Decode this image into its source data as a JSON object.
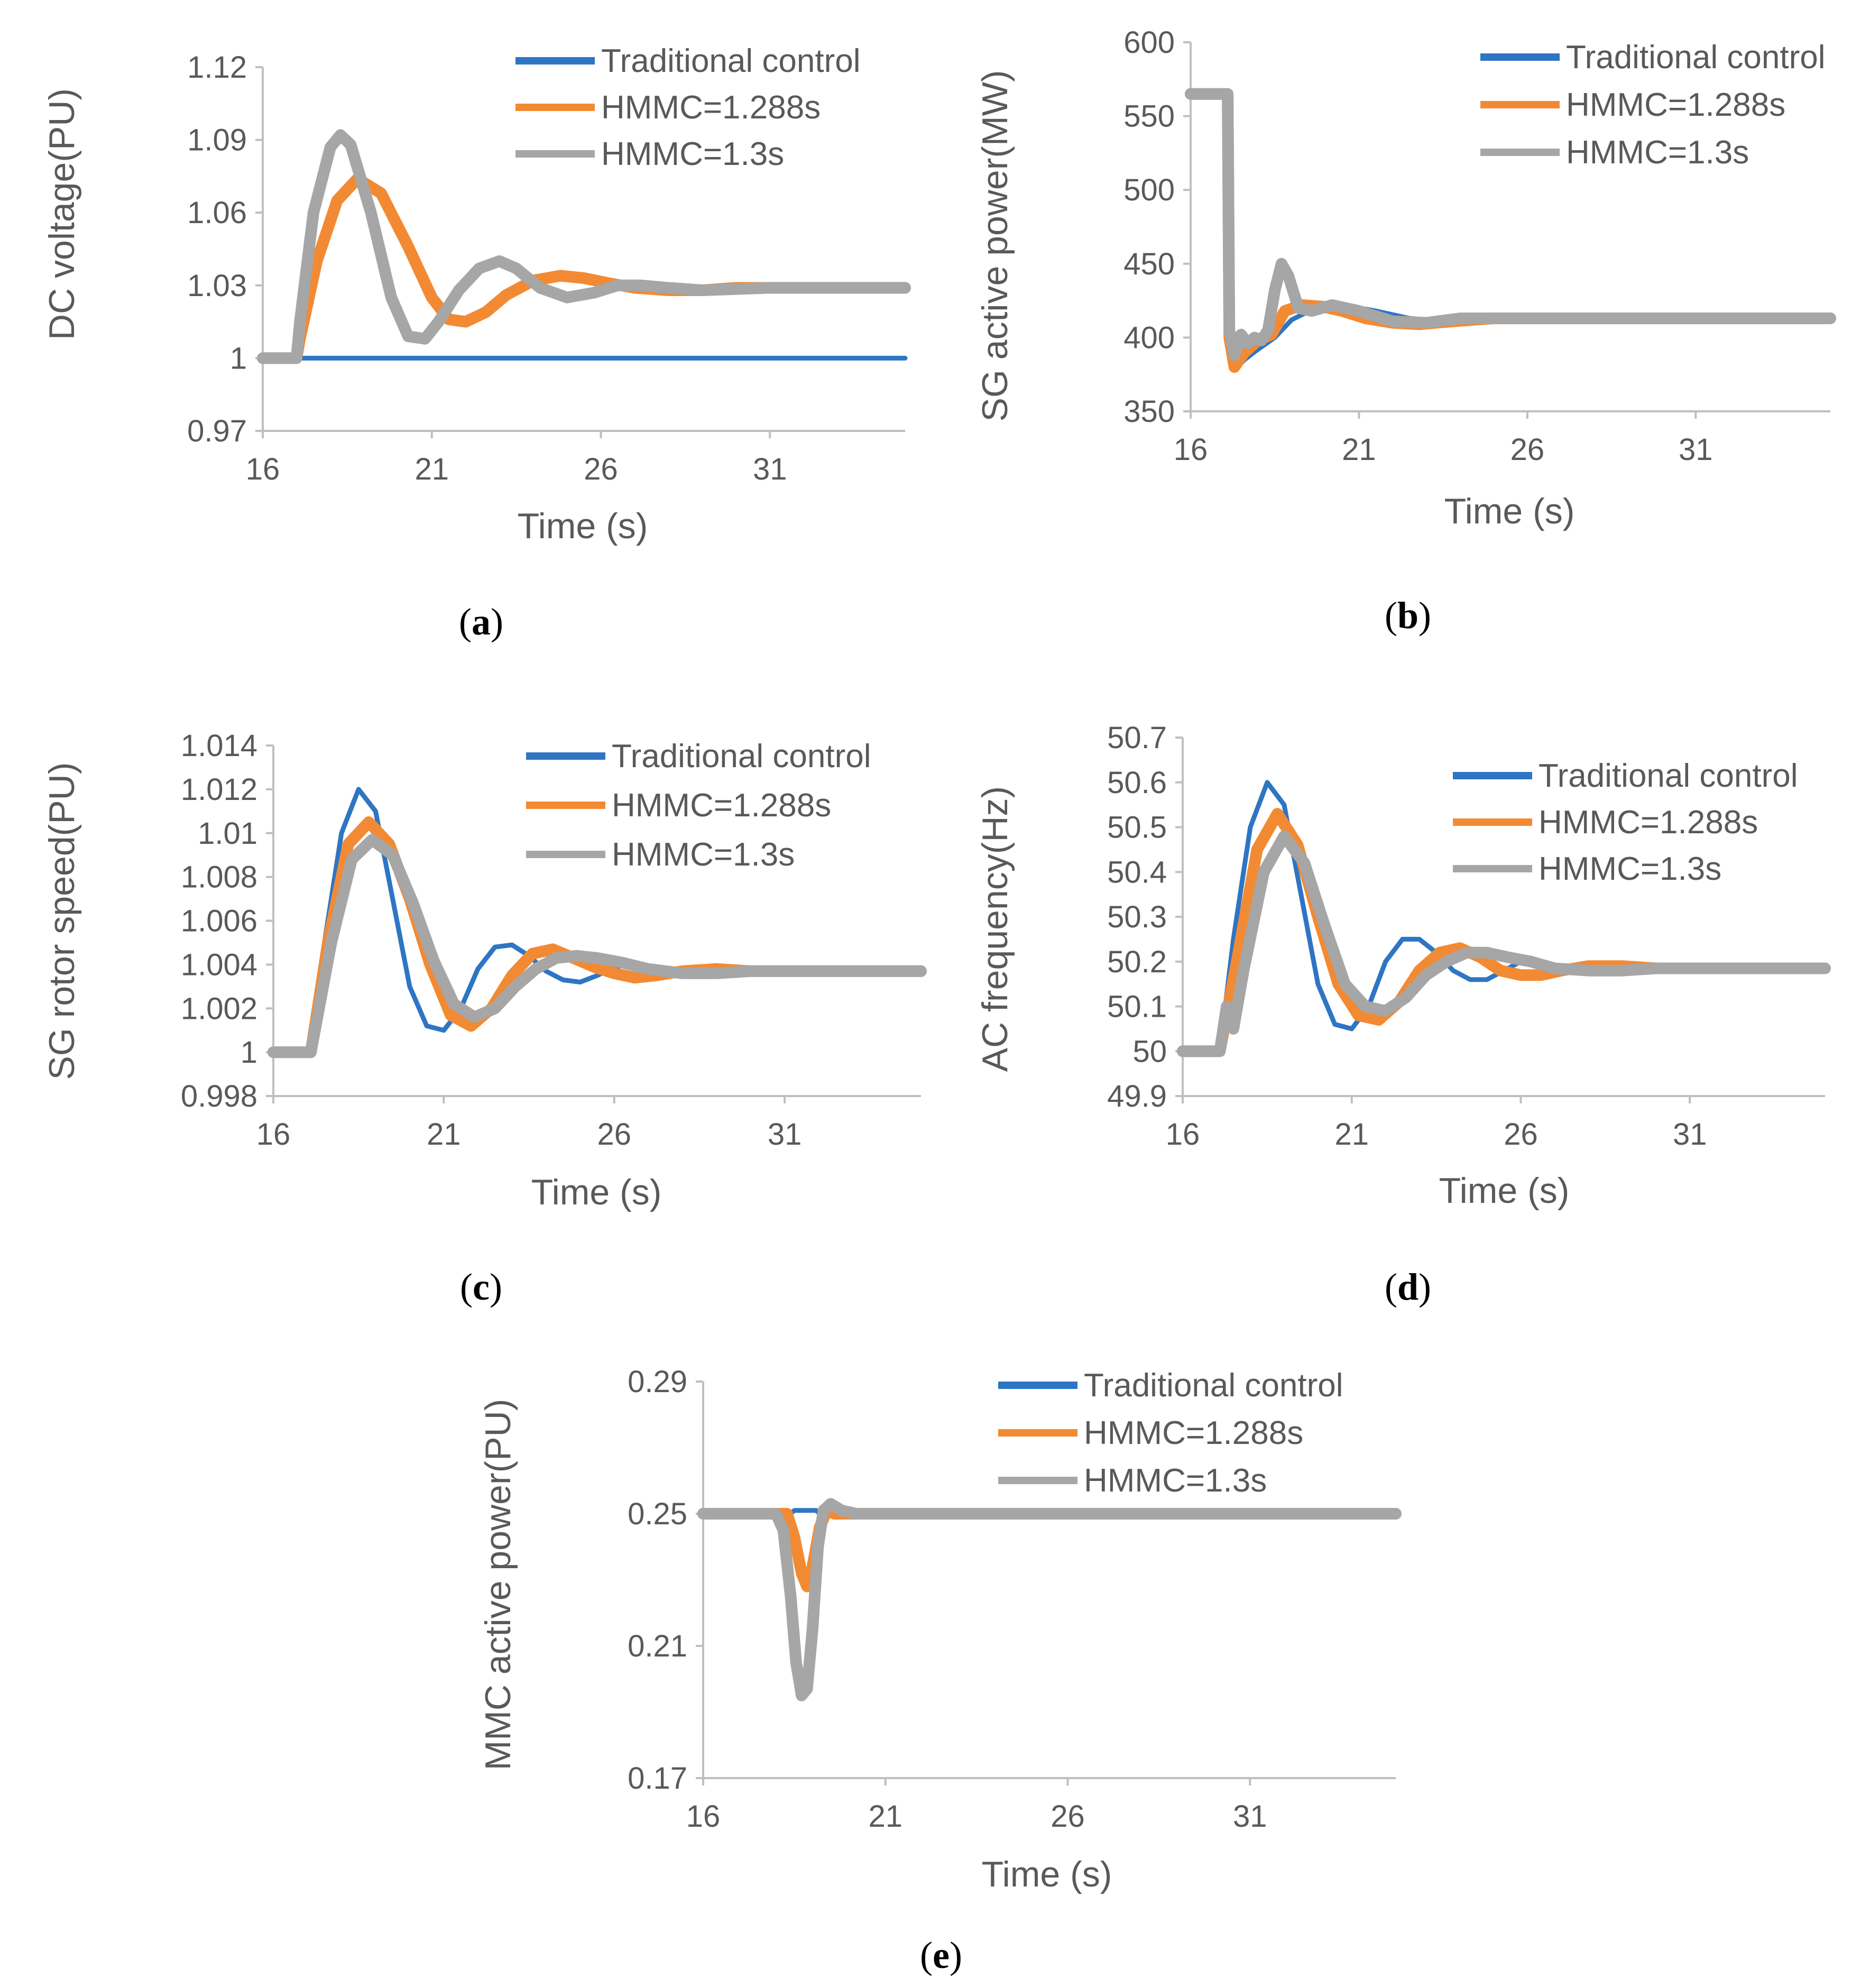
{
  "colors": {
    "traditional": "#2e75c4",
    "hmmc1288": "#f28a33",
    "hmmc13": "#a6a6a6",
    "axis": "#bfbfbf",
    "text": "#595959"
  },
  "legend": [
    "Traditional control",
    "HMMC=1.288s",
    "HMMC=1.3s"
  ],
  "chart_data": [
    {
      "panel": "a",
      "caption_letter": "a",
      "type": "line",
      "ylabel": "DC voltage(PU)",
      "xlabel": "Time (s)",
      "xlim": [
        16,
        35
      ],
      "ylim": [
        0.97,
        1.12
      ],
      "xticks": [
        16,
        21,
        26,
        31
      ],
      "xtick_labels": [
        "16",
        "21",
        "26",
        "31"
      ],
      "yticks": [
        0.97,
        1.0,
        1.03,
        1.06,
        1.09,
        1.12
      ],
      "ytick_labels": [
        "0.97",
        "1",
        "1.03",
        "1.06",
        "1.09",
        "1.12"
      ],
      "series": [
        {
          "name": "Traditional control",
          "color": "#2e75c4",
          "x": [
            16,
            35
          ],
          "y": [
            1.0,
            1.0
          ]
        },
        {
          "name": "HMMC=1.288s",
          "color": "#f28a33",
          "x": [
            16,
            17,
            17.1,
            17.6,
            18.2,
            18.8,
            19.5,
            20.3,
            21,
            21.5,
            22,
            22.6,
            23.2,
            24,
            24.8,
            25.5,
            26.2,
            27,
            28,
            29,
            30,
            31,
            33,
            35
          ],
          "y": [
            1.0,
            1.0,
            1.008,
            1.04,
            1.065,
            1.074,
            1.068,
            1.046,
            1.025,
            1.016,
            1.015,
            1.019,
            1.026,
            1.032,
            1.034,
            1.033,
            1.031,
            1.029,
            1.028,
            1.028,
            1.029,
            1.029,
            1.029,
            1.029
          ]
        },
        {
          "name": "HMMC=1.3s",
          "color": "#a6a6a6",
          "x": [
            16,
            17,
            17.1,
            17.5,
            18,
            18.3,
            18.6,
            19.2,
            19.8,
            20.3,
            20.8,
            21.2,
            21.8,
            22.4,
            23,
            23.5,
            24.2,
            25,
            25.8,
            26.5,
            27.2,
            28,
            29,
            31,
            33,
            35
          ],
          "y": [
            1.0,
            1.0,
            1.015,
            1.06,
            1.087,
            1.092,
            1.088,
            1.06,
            1.025,
            1.009,
            1.008,
            1.015,
            1.028,
            1.037,
            1.04,
            1.037,
            1.029,
            1.025,
            1.027,
            1.03,
            1.03,
            1.029,
            1.028,
            1.029,
            1.029,
            1.029
          ]
        }
      ]
    },
    {
      "panel": "b",
      "caption_letter": "b",
      "type": "line",
      "ylabel": "SG active power(MW)",
      "xlabel": "Time (s)",
      "xlim": [
        16,
        35
      ],
      "ylim": [
        350,
        600
      ],
      "xticks": [
        16,
        21,
        26,
        31
      ],
      "xtick_labels": [
        "16",
        "21",
        "26",
        "31"
      ],
      "yticks": [
        350,
        400,
        450,
        500,
        550,
        600
      ],
      "ytick_labels": [
        "350",
        "400",
        "450",
        "500",
        "550",
        "600"
      ],
      "series": [
        {
          "name": "Traditional control",
          "color": "#2e75c4",
          "x": [
            16,
            17.1,
            17.15,
            17.3,
            17.6,
            18,
            18.5,
            19,
            19.7,
            20.5,
            21.5,
            22.5,
            23.5,
            25,
            27,
            30,
            35
          ],
          "y": [
            565,
            565,
            400,
            378,
            385,
            392,
            400,
            412,
            420,
            422,
            418,
            413,
            411,
            412,
            413,
            413,
            413
          ]
        },
        {
          "name": "HMMC=1.288s",
          "color": "#f28a33",
          "x": [
            16,
            17.1,
            17.15,
            17.3,
            17.6,
            18,
            18.4,
            18.8,
            19.3,
            19.9,
            20.5,
            21.2,
            22,
            22.8,
            23.8,
            25,
            27,
            30,
            35
          ],
          "y": [
            565,
            565,
            400,
            380,
            390,
            398,
            402,
            418,
            422,
            421,
            418,
            413,
            410,
            409,
            411,
            413,
            413,
            413,
            413
          ]
        },
        {
          "name": "HMMC=1.3s",
          "color": "#a6a6a6",
          "x": [
            16,
            17.1,
            17.15,
            17.3,
            17.5,
            17.7,
            17.9,
            18.1,
            18.3,
            18.5,
            18.7,
            18.9,
            19.2,
            19.6,
            20.2,
            21,
            22,
            23,
            24,
            26,
            30,
            35
          ],
          "y": [
            565,
            565,
            405,
            388,
            402,
            396,
            400,
            398,
            405,
            432,
            450,
            442,
            420,
            418,
            422,
            418,
            411,
            410,
            413,
            413,
            413,
            413
          ]
        }
      ]
    },
    {
      "panel": "c",
      "caption_letter": "c",
      "type": "line",
      "ylabel": "SG rotor speed(PU)",
      "xlabel": "Time (s)",
      "xlim": [
        16,
        35
      ],
      "ylim": [
        0.998,
        1.014
      ],
      "xticks": [
        16,
        21,
        26,
        31
      ],
      "xtick_labels": [
        "16",
        "21",
        "26",
        "31"
      ],
      "yticks": [
        0.998,
        1.0,
        1.002,
        1.004,
        1.006,
        1.008,
        1.01,
        1.012,
        1.014
      ],
      "ytick_labels": [
        "0.998",
        "1",
        "1.002",
        "1.004",
        "1.006",
        "1.008",
        "1.01",
        "1.012",
        "1.014"
      ],
      "series": [
        {
          "name": "Traditional control",
          "color": "#2e75c4",
          "x": [
            16,
            17.1,
            17.5,
            18,
            18.5,
            19,
            19.5,
            20,
            20.5,
            21,
            21.5,
            22,
            22.5,
            23,
            23.5,
            24,
            24.5,
            25,
            25.5,
            26,
            26.5,
            27,
            28,
            29,
            30,
            32,
            35
          ],
          "y": [
            1.0,
            1.0,
            1.005,
            1.01,
            1.012,
            1.011,
            1.007,
            1.003,
            1.0012,
            1.001,
            1.002,
            1.0038,
            1.0048,
            1.0049,
            1.0044,
            1.0037,
            1.0033,
            1.0032,
            1.0035,
            1.0039,
            1.004,
            1.0039,
            1.0037,
            1.0036,
            1.0037,
            1.0037,
            1.0037
          ]
        },
        {
          "name": "HMMC=1.288s",
          "color": "#f28a33",
          "x": [
            16,
            17.1,
            17.6,
            18.2,
            18.8,
            19.4,
            20,
            20.6,
            21.2,
            21.8,
            22.4,
            23,
            23.6,
            24.2,
            24.8,
            25.4,
            26,
            26.6,
            27.2,
            28,
            29,
            30,
            32,
            35
          ],
          "y": [
            1.0,
            1.0,
            1.005,
            1.0095,
            1.0105,
            1.0095,
            1.007,
            1.004,
            1.0017,
            1.0012,
            1.002,
            1.0035,
            1.0045,
            1.0047,
            1.0043,
            1.0039,
            1.0036,
            1.0034,
            1.0035,
            1.0037,
            1.0038,
            1.0037,
            1.0037,
            1.0037
          ]
        },
        {
          "name": "HMMC=1.3s",
          "color": "#a6a6a6",
          "x": [
            16,
            17.1,
            17.7,
            18.3,
            18.9,
            19.5,
            20.1,
            20.7,
            21.3,
            21.9,
            22.5,
            23.1,
            23.7,
            24.3,
            24.9,
            25.5,
            26.2,
            27,
            28,
            29,
            30,
            32,
            35
          ],
          "y": [
            1.0,
            1.0,
            1.005,
            1.0088,
            1.0097,
            1.009,
            1.0068,
            1.0042,
            1.0022,
            1.0016,
            1.002,
            1.003,
            1.0038,
            1.0043,
            1.0044,
            1.0043,
            1.0041,
            1.0038,
            1.0036,
            1.0036,
            1.0037,
            1.0037,
            1.0037
          ]
        }
      ]
    },
    {
      "panel": "d",
      "caption_letter": "d",
      "type": "line",
      "ylabel": "AC frequency(Hz)",
      "xlabel": "Time (s)",
      "xlim": [
        16,
        35
      ],
      "ylim": [
        49.9,
        50.7
      ],
      "xticks": [
        16,
        21,
        26,
        31
      ],
      "xtick_labels": [
        "16",
        "21",
        "26",
        "31"
      ],
      "yticks": [
        49.9,
        50,
        50.1,
        50.2,
        50.3,
        50.4,
        50.5,
        50.6,
        50.7
      ],
      "ytick_labels": [
        "49.9",
        "50",
        "50.1",
        "50.2",
        "50.3",
        "50.4",
        "50.5",
        "50.6",
        "50.7"
      ],
      "series": [
        {
          "name": "Traditional control",
          "color": "#2e75c4",
          "x": [
            16,
            17.1,
            17.5,
            18,
            18.5,
            19,
            19.5,
            20,
            20.5,
            21,
            21.5,
            22,
            22.5,
            23,
            23.5,
            24,
            24.5,
            25,
            25.5,
            26,
            26.5,
            27,
            28,
            29,
            30,
            32,
            35
          ],
          "y": [
            50.0,
            50.0,
            50.25,
            50.5,
            50.6,
            50.55,
            50.35,
            50.15,
            50.06,
            50.05,
            50.1,
            50.2,
            50.25,
            50.25,
            50.22,
            50.18,
            50.16,
            50.16,
            50.18,
            50.2,
            50.2,
            50.19,
            50.18,
            50.18,
            50.185,
            50.185,
            50.185
          ]
        },
        {
          "name": "HMMC=1.288s",
          "color": "#f28a33",
          "x": [
            16,
            17.1,
            17.6,
            18.2,
            18.8,
            19.4,
            20,
            20.6,
            21.2,
            21.8,
            22.4,
            23,
            23.6,
            24.2,
            24.8,
            25.4,
            26,
            26.6,
            27.2,
            28,
            29,
            30,
            32,
            35
          ],
          "y": [
            50.0,
            50.0,
            50.2,
            50.45,
            50.53,
            50.46,
            50.3,
            50.15,
            50.08,
            50.07,
            50.11,
            50.18,
            50.22,
            50.23,
            50.21,
            50.18,
            50.17,
            50.17,
            50.18,
            50.19,
            50.19,
            50.185,
            50.185,
            50.185
          ]
        },
        {
          "name": "HMMC=1.3s",
          "color": "#a6a6a6",
          "x": [
            16,
            17.1,
            17.3,
            17.5,
            17.8,
            18.4,
            19,
            19.6,
            20.2,
            20.8,
            21.4,
            22,
            22.6,
            23.2,
            23.8,
            24.4,
            25,
            25.6,
            26.3,
            27,
            28,
            29,
            30,
            32,
            35
          ],
          "y": [
            50.0,
            50.0,
            50.1,
            50.05,
            50.18,
            50.4,
            50.48,
            50.42,
            50.28,
            50.15,
            50.1,
            50.09,
            50.12,
            50.17,
            50.2,
            50.22,
            50.22,
            50.21,
            50.2,
            50.185,
            50.18,
            50.18,
            50.185,
            50.185,
            50.185
          ]
        }
      ]
    },
    {
      "panel": "e",
      "caption_letter": "e",
      "type": "line",
      "ylabel": "MMC active power(PU)",
      "xlabel": "Time (s)",
      "xlim": [
        16,
        35
      ],
      "ylim": [
        0.17,
        0.29
      ],
      "xticks": [
        16,
        21,
        26,
        31
      ],
      "xtick_labels": [
        "16",
        "21",
        "26",
        "31"
      ],
      "yticks": [
        0.17,
        0.21,
        0.25,
        0.29
      ],
      "ytick_labels": [
        "0.17",
        "0.21",
        "0.25",
        "0.29"
      ],
      "series": [
        {
          "name": "Traditional control",
          "color": "#2e75c4",
          "x": [
            16,
            18.4,
            18.5,
            19.1,
            19.2,
            35
          ],
          "y": [
            0.25,
            0.25,
            0.251,
            0.251,
            0.25,
            0.25
          ]
        },
        {
          "name": "HMMC=1.288s",
          "color": "#f28a33",
          "x": [
            16,
            18.3,
            18.5,
            18.7,
            18.85,
            19.0,
            19.2,
            19.4,
            19.6,
            35
          ],
          "y": [
            0.25,
            0.25,
            0.243,
            0.232,
            0.228,
            0.234,
            0.246,
            0.251,
            0.25,
            0.25
          ]
        },
        {
          "name": "HMMC=1.3s",
          "color": "#a6a6a6",
          "x": [
            16,
            18.0,
            18.2,
            18.4,
            18.55,
            18.7,
            18.85,
            19.0,
            19.15,
            19.3,
            19.5,
            19.8,
            20.2,
            35
          ],
          "y": [
            0.25,
            0.25,
            0.245,
            0.225,
            0.205,
            0.195,
            0.197,
            0.215,
            0.24,
            0.251,
            0.253,
            0.251,
            0.25,
            0.25
          ]
        }
      ]
    }
  ]
}
